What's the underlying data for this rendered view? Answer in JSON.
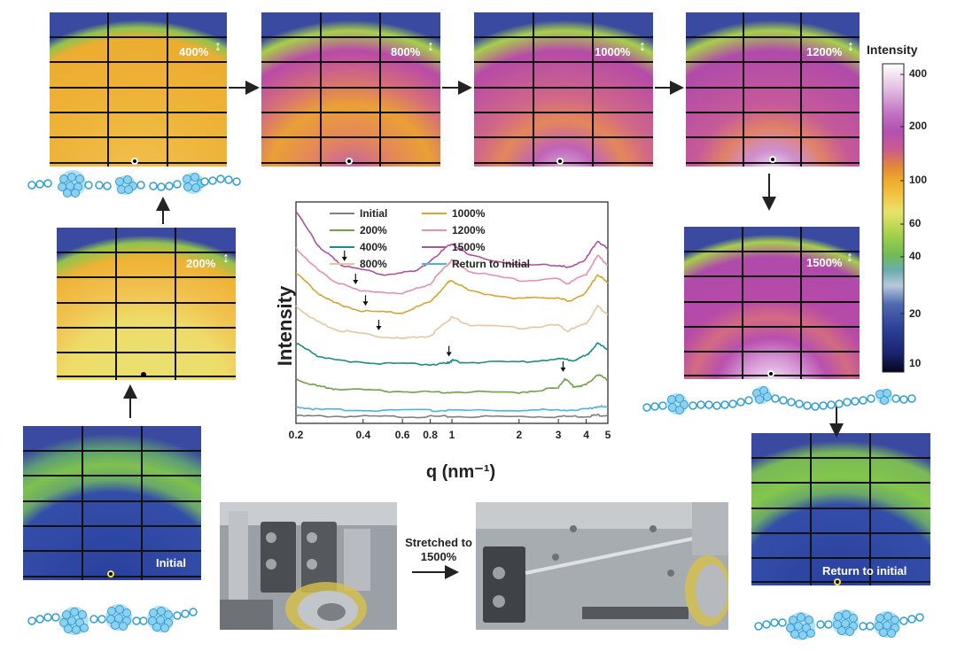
{
  "panels": [
    {
      "id": "initial",
      "label": "Initial",
      "strain": ""
    },
    {
      "id": "s200",
      "label": "",
      "strain": "200%"
    },
    {
      "id": "s400",
      "label": "",
      "strain": "400%"
    },
    {
      "id": "s800",
      "label": "",
      "strain": "800%"
    },
    {
      "id": "s1000",
      "label": "",
      "strain": "1000%"
    },
    {
      "id": "s1200",
      "label": "",
      "strain": "1200%"
    },
    {
      "id": "s1500",
      "label": "",
      "strain": "1500%"
    },
    {
      "id": "return",
      "label": "Return to initial",
      "strain": ""
    }
  ],
  "colorbar": {
    "title": "Intensity",
    "ticks": [
      "400",
      "200",
      "100",
      "60",
      "40",
      "20",
      "10"
    ],
    "colors": [
      "#ffffff",
      "#d9a9d8",
      "#b54ab8",
      "#b84a9c",
      "#d65f86",
      "#e8892f",
      "#efaa2a",
      "#f0c640",
      "#e9e46a",
      "#a6d24a",
      "#7dc04c",
      "#55b36b",
      "#6fa9b4",
      "#a8bed6",
      "#4763ad",
      "#2b3e96",
      "#1a2570",
      "#05051a"
    ]
  },
  "photo": {
    "caption_line1": "Stretched to",
    "caption_line2": "1500%"
  },
  "chart_data": {
    "type": "line",
    "xlabel": "q (nm⁻¹)",
    "ylabel": "Intensity",
    "xscale": "log",
    "xlim": [
      0.2,
      5
    ],
    "xticks": [
      "0.2",
      "0.4",
      "0.6",
      "0.8",
      "1",
      "2",
      "3",
      "4",
      "5"
    ],
    "legend_position": "top-left",
    "series": [
      {
        "name": "Initial",
        "color": "#808080",
        "x": [
          0.2,
          0.3,
          0.5,
          0.8,
          1.0,
          2.0,
          3.0,
          4.0,
          4.5,
          5.0
        ],
        "y": [
          0.24,
          0.23,
          0.22,
          0.22,
          0.22,
          0.22,
          0.22,
          0.23,
          0.27,
          0.26
        ]
      },
      {
        "name": "200%",
        "color": "#6ea345",
        "x": [
          0.2,
          0.25,
          0.3,
          0.5,
          0.8,
          1.0,
          2.0,
          3.0,
          3.2,
          3.5,
          4.0,
          4.5,
          5.0
        ],
        "y": [
          1.45,
          1.2,
          1.12,
          1.05,
          1.02,
          1.02,
          1.01,
          1.15,
          1.45,
          1.2,
          1.25,
          1.6,
          1.4
        ]
      },
      {
        "name": "400%",
        "color": "#1b8a8a",
        "x": [
          0.2,
          0.25,
          0.3,
          0.5,
          0.8,
          0.95,
          1.0,
          1.1,
          2.0,
          3.0,
          3.5,
          4.0,
          4.5,
          5.0
        ],
        "y": [
          2.6,
          2.2,
          2.05,
          1.95,
          1.92,
          1.95,
          2.05,
          1.98,
          2.0,
          2.1,
          2.05,
          2.2,
          2.6,
          2.4
        ]
      },
      {
        "name": "800%",
        "color": "#e6c6a0",
        "x": [
          0.2,
          0.25,
          0.3,
          0.45,
          0.6,
          0.8,
          0.95,
          1.0,
          1.2,
          2.0,
          3.0,
          3.3,
          4.0,
          4.5,
          5.0
        ],
        "y": [
          3.8,
          3.3,
          3.05,
          2.85,
          2.75,
          2.85,
          3.3,
          3.45,
          3.2,
          3.1,
          3.2,
          3.0,
          3.25,
          3.8,
          3.55
        ]
      },
      {
        "name": "1000%",
        "color": "#d8a42a",
        "x": [
          0.2,
          0.25,
          0.3,
          0.4,
          0.6,
          0.8,
          0.95,
          1.0,
          1.2,
          2.0,
          3.0,
          3.3,
          4.0,
          4.5,
          5.0
        ],
        "y": [
          4.9,
          4.25,
          3.9,
          3.65,
          3.6,
          3.95,
          4.55,
          4.65,
          4.3,
          4.05,
          4.1,
          3.95,
          4.25,
          4.85,
          4.55
        ]
      },
      {
        "name": "1200%",
        "color": "#e88fb0",
        "x": [
          0.2,
          0.25,
          0.3,
          0.37,
          0.6,
          0.8,
          0.95,
          1.0,
          1.2,
          2.0,
          3.0,
          3.3,
          4.0,
          4.5,
          5.0
        ],
        "y": [
          5.7,
          5.0,
          4.6,
          4.35,
          4.2,
          4.55,
          5.15,
          5.3,
          4.95,
          4.65,
          4.7,
          4.55,
          4.85,
          5.45,
          5.15
        ]
      },
      {
        "name": "1500%",
        "color": "#b2509e",
        "x": [
          0.2,
          0.25,
          0.3,
          0.33,
          0.5,
          0.7,
          0.9,
          1.0,
          1.2,
          2.0,
          3.0,
          3.3,
          4.0,
          4.5,
          5.0
        ],
        "y": [
          6.9,
          5.8,
          5.3,
          5.1,
          4.85,
          4.95,
          5.6,
          5.85,
          5.45,
          5.15,
          5.15,
          5.05,
          5.35,
          5.95,
          5.65
        ]
      },
      {
        "name": "Return to initial",
        "color": "#4fb3d9",
        "x": [
          0.2,
          0.25,
          0.4,
          0.8,
          1.0,
          2.0,
          3.0,
          4.0,
          4.5,
          5.0
        ],
        "y": [
          0.55,
          0.45,
          0.42,
          0.42,
          0.42,
          0.42,
          0.44,
          0.45,
          0.55,
          0.52
        ]
      }
    ],
    "arrows": [
      {
        "q": 0.33,
        "y": 5.1
      },
      {
        "q": 0.37,
        "y": 4.35
      },
      {
        "q": 0.41,
        "y": 3.65
      },
      {
        "q": 0.47,
        "y": 2.85
      },
      {
        "q": 0.97,
        "y": 2.0
      },
      {
        "q": 3.15,
        "y": 1.5
      }
    ]
  }
}
